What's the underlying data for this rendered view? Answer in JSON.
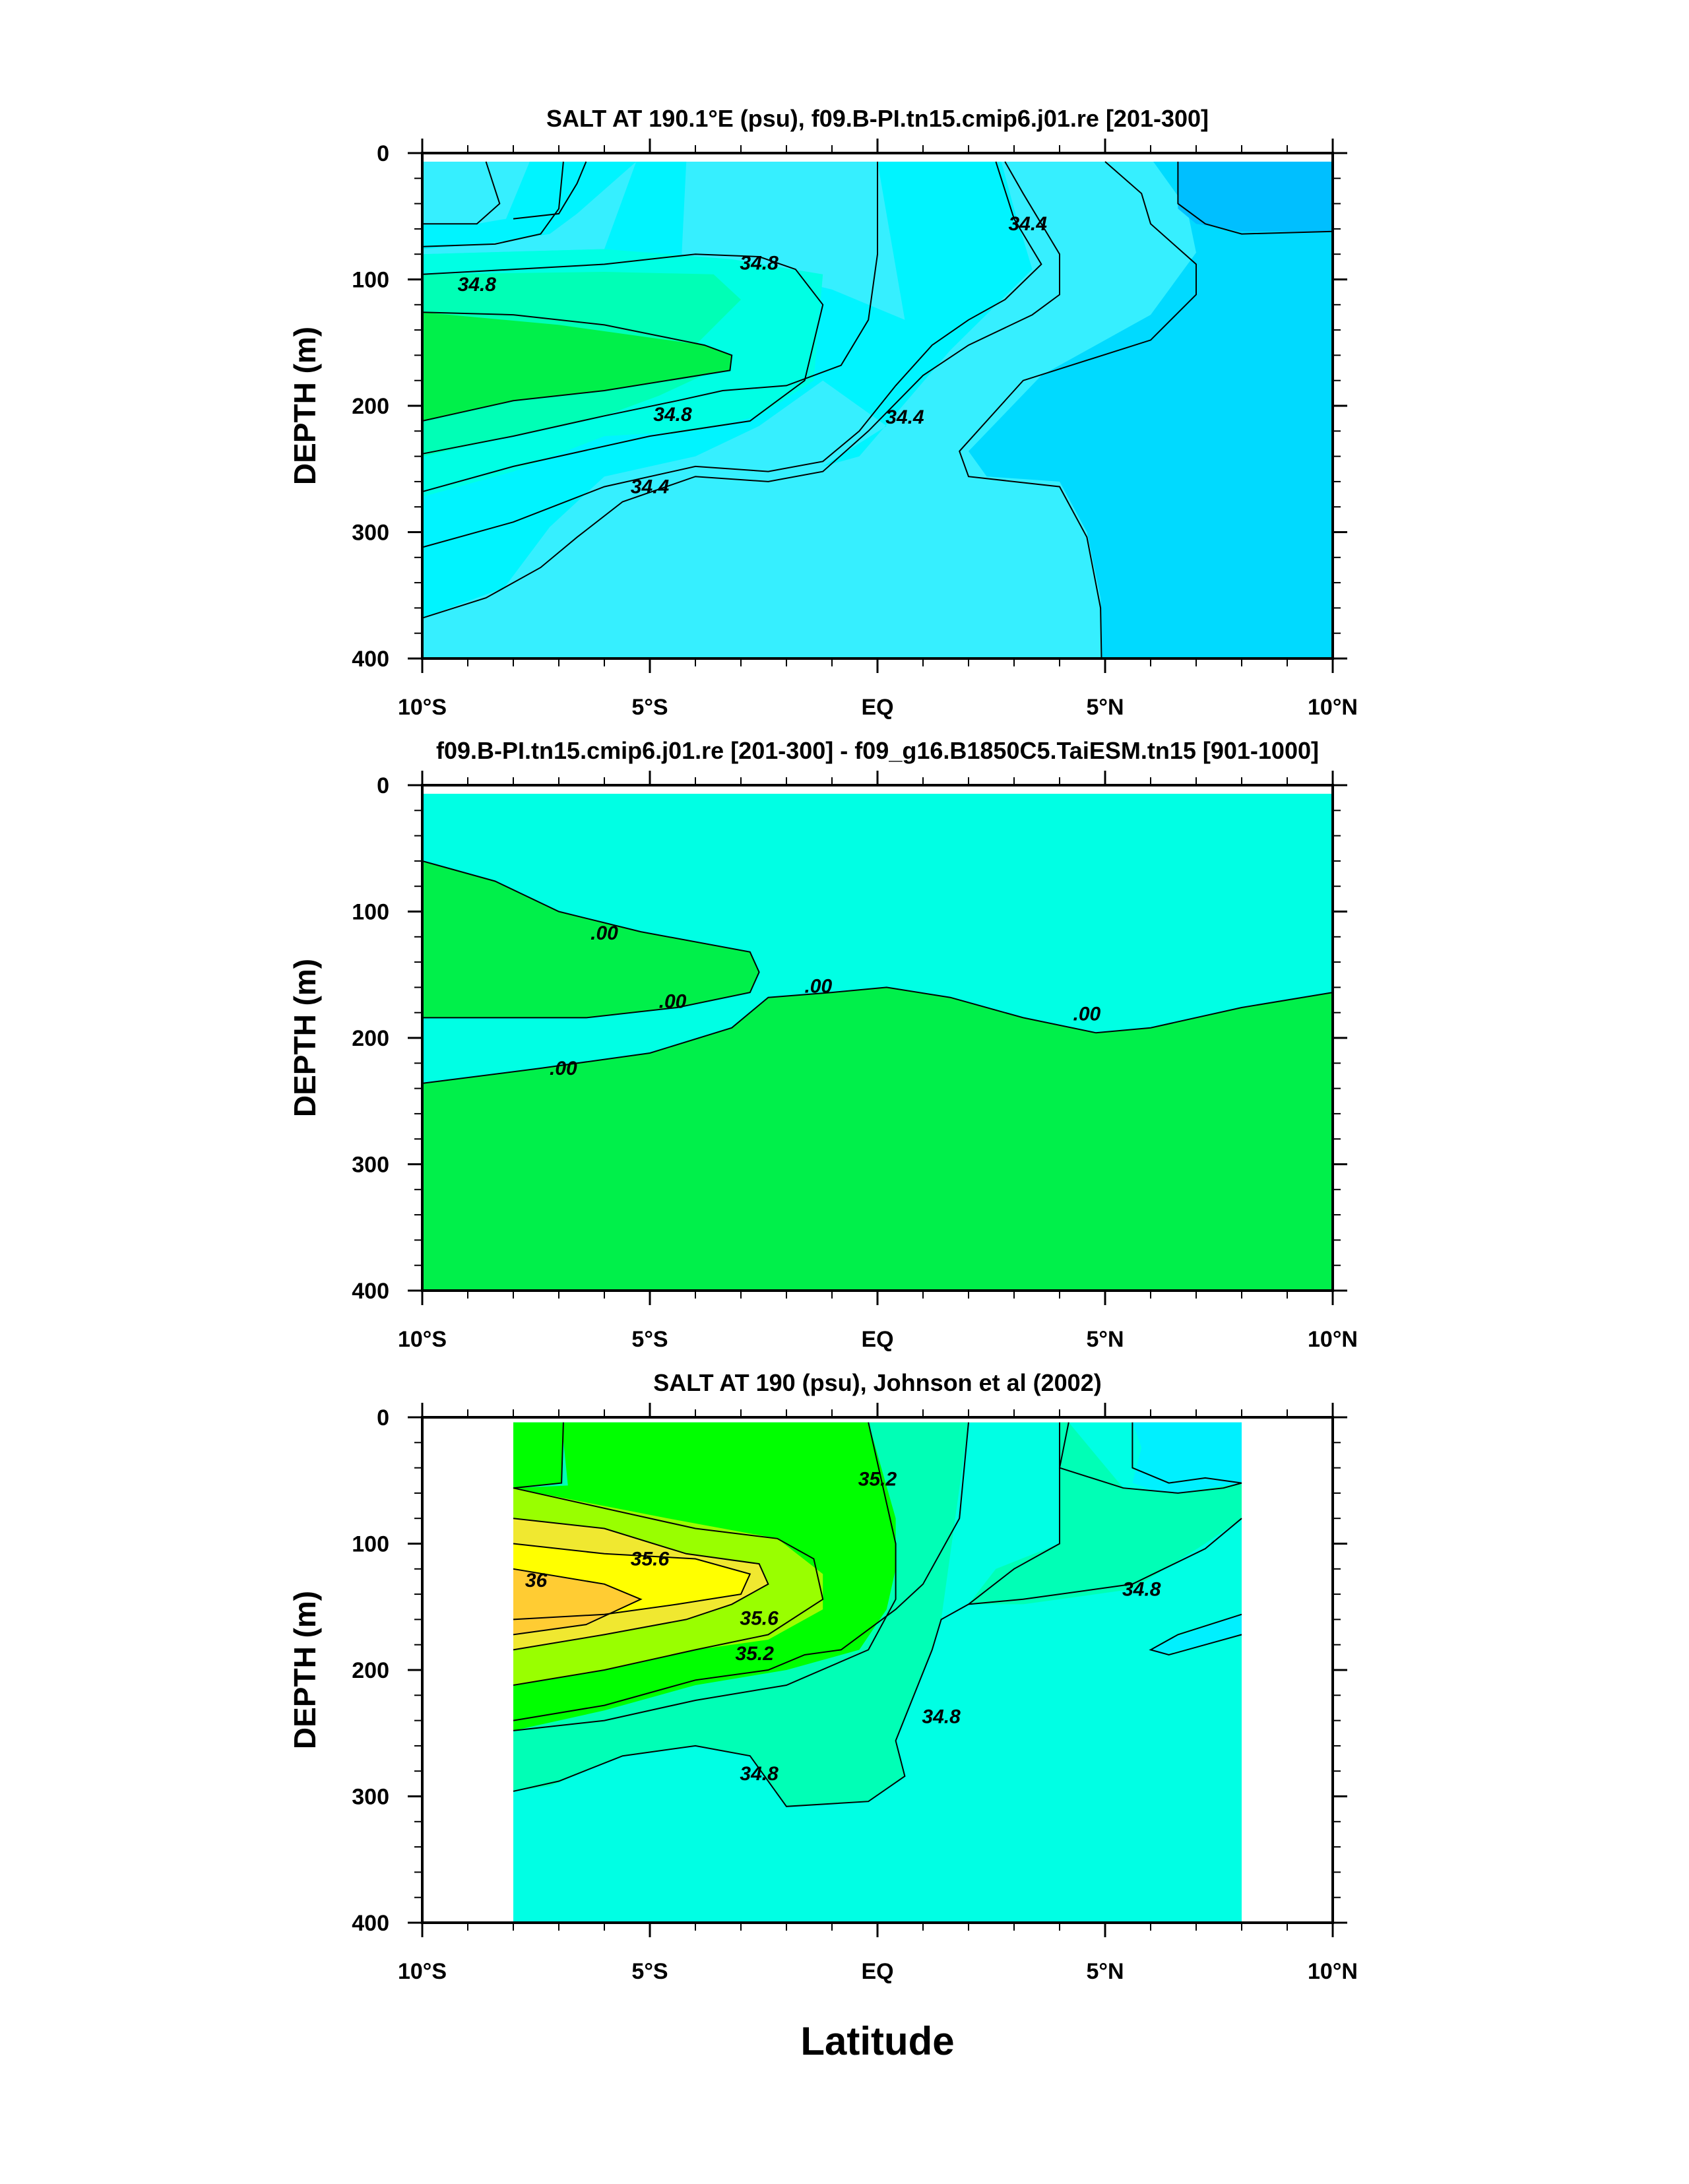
{
  "chart_data": [
    {
      "type": "contour",
      "title": "SALT AT 190.1°E (psu), f09.B-PI.tn15.cmip6.j01.re [201-300]",
      "ylabel": "DEPTH (m)",
      "xlabel": "",
      "xlim": [
        -10,
        10
      ],
      "ylim": [
        400,
        0
      ],
      "x_ticks": [
        -10,
        -5,
        0,
        5,
        10
      ],
      "x_tick_labels": [
        "10°S",
        "5°S",
        "EQ",
        "5°N",
        "10°N"
      ],
      "y_ticks": [
        0,
        100,
        200,
        300,
        400
      ],
      "y_tick_labels": [
        "0",
        "100",
        "200",
        "300",
        "400"
      ],
      "contour_labels": [
        {
          "text": "34.8",
          "x": -8.8,
          "y": 105
        },
        {
          "text": "34.8",
          "x": -2.6,
          "y": 88
        },
        {
          "text": "34.8",
          "x": -4.5,
          "y": 208
        },
        {
          "text": "34.4",
          "x": -5.0,
          "y": 265
        },
        {
          "text": "34.4",
          "x": 0.6,
          "y": 210
        },
        {
          "text": "34.4",
          "x": 3.3,
          "y": 57
        }
      ],
      "colors": [
        "#00f04a",
        "#00ffb6",
        "#00ffe4",
        "#00f4ff",
        "#36efff",
        "#00daff",
        "#00bfff",
        "#ffffff"
      ]
    },
    {
      "type": "contour",
      "title": "f09.B-PI.tn15.cmip6.j01.re [201-300] - f09_g16.B1850C5.TaiESM.tn15 [901-1000]",
      "ylabel": "DEPTH (m)",
      "xlabel": "",
      "xlim": [
        -10,
        10
      ],
      "ylim": [
        400,
        0
      ],
      "x_ticks": [
        -10,
        -5,
        0,
        5,
        10
      ],
      "x_tick_labels": [
        "10°S",
        "5°S",
        "EQ",
        "5°N",
        "10°N"
      ],
      "y_ticks": [
        0,
        100,
        200,
        300,
        400
      ],
      "y_tick_labels": [
        "0",
        "100",
        "200",
        "300",
        "400"
      ],
      "contour_labels": [
        {
          "text": ".00",
          "x": -6.0,
          "y": 118
        },
        {
          "text": ".00",
          "x": -4.5,
          "y": 172
        },
        {
          "text": ".00",
          "x": -1.3,
          "y": 160
        },
        {
          "text": ".00",
          "x": 4.6,
          "y": 182
        },
        {
          "text": ".00",
          "x": -6.9,
          "y": 225
        }
      ]
    },
    {
      "type": "contour",
      "title": "SALT AT 190 (psu), Johnson et al (2002)",
      "ylabel": "DEPTH (m)",
      "xlabel": "Latitude",
      "xlim": [
        -10,
        10
      ],
      "ylim": [
        400,
        0
      ],
      "data_x_range": [
        -8,
        8
      ],
      "x_ticks": [
        -10,
        -5,
        0,
        5,
        10
      ],
      "x_tick_labels": [
        "10°S",
        "5°S",
        "EQ",
        "5°N",
        "10°N"
      ],
      "y_ticks": [
        0,
        100,
        200,
        300,
        400
      ],
      "y_tick_labels": [
        "0",
        "100",
        "200",
        "300",
        "400"
      ],
      "contour_labels": [
        {
          "text": "35.2",
          "x": 0.0,
          "y": 50
        },
        {
          "text": "35.6",
          "x": -5.0,
          "y": 113
        },
        {
          "text": "36",
          "x": -7.5,
          "y": 130
        },
        {
          "text": "35.6",
          "x": -2.6,
          "y": 160
        },
        {
          "text": "35.2",
          "x": -2.7,
          "y": 188
        },
        {
          "text": "34.8",
          "x": 1.4,
          "y": 238
        },
        {
          "text": "34.8",
          "x": 5.8,
          "y": 137
        },
        {
          "text": "34.8",
          "x": -2.6,
          "y": 283
        }
      ],
      "colors": [
        "#ffcc33",
        "#ffff00",
        "#f0e830",
        "#99ff00",
        "#00ff00",
        "#00f04a",
        "#00ffb6",
        "#00ffe4",
        "#00f0ff"
      ]
    }
  ]
}
